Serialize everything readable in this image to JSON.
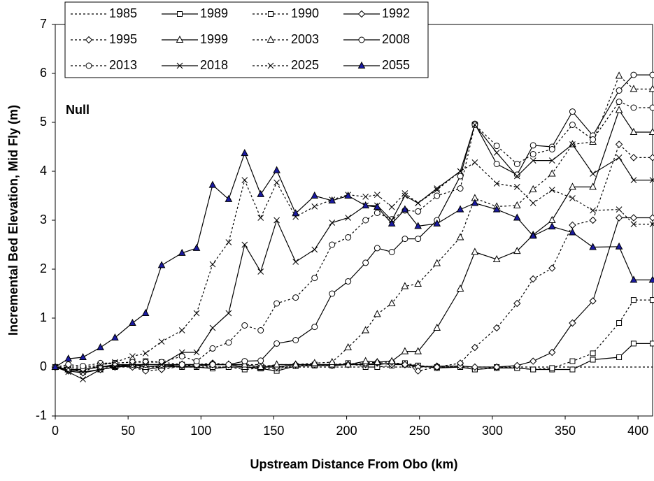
{
  "chart_data": {
    "type": "line",
    "x_label": "Upstream Distance From Obo (km)",
    "y_label": "Incremental Bed Elevation, Mid Fly (m)",
    "annotation": "Null",
    "x": [
      0,
      9,
      19,
      31,
      41,
      53,
      62,
      73,
      87,
      97,
      108,
      119,
      130,
      141,
      152,
      165,
      178,
      190,
      201,
      213,
      221,
      231,
      240,
      249,
      262,
      278,
      288,
      303,
      317,
      328,
      341,
      355,
      369,
      387,
      397,
      410
    ],
    "xlim": [
      0,
      410
    ],
    "xticks": [
      0,
      50,
      100,
      150,
      200,
      250,
      300,
      350,
      400
    ],
    "ylim": [
      -1,
      7
    ],
    "yticks": [
      -1,
      0,
      1,
      2,
      3,
      4,
      5,
      6,
      7
    ],
    "grid": false,
    "legend_position": "top-left",
    "series": [
      {
        "name": "1985",
        "color": "#000000",
        "dash": true,
        "marker": "none",
        "values": [
          0,
          0,
          0,
          0,
          0,
          0,
          0,
          0,
          0,
          0,
          0,
          0,
          0,
          0,
          0,
          0,
          0,
          0,
          0,
          0,
          0,
          0,
          0,
          0,
          0,
          0,
          0,
          0,
          0,
          0,
          0,
          0,
          0,
          0,
          0,
          0
        ]
      },
      {
        "name": "1989",
        "color": "#000000",
        "dash": false,
        "marker": "square",
        "values": [
          0,
          -0.05,
          -0.1,
          -0.05,
          0,
          0.02,
          0.05,
          0.05,
          0,
          0,
          -0.03,
          0,
          0,
          -0.03,
          -0.08,
          0.02,
          0.03,
          0.03,
          0.05,
          0.05,
          0.05,
          0.08,
          0.05,
          0.03,
          -0.02,
          0,
          -0.05,
          -0.02,
          -0.02,
          -0.05,
          -0.05,
          -0.05,
          0.15,
          0.2,
          0.48,
          0.48
        ]
      },
      {
        "name": "1990",
        "color": "#000000",
        "dash": true,
        "marker": "square",
        "values": [
          0,
          -0.05,
          -0.02,
          0.05,
          0.08,
          0.1,
          0.12,
          0.1,
          0.05,
          0.05,
          0,
          0,
          -0.05,
          -0.02,
          -0.03,
          0.02,
          0.05,
          0.05,
          0.08,
          0,
          0,
          0.03,
          0.08,
          0.03,
          0,
          0,
          -0.05,
          0,
          -0.02,
          -0.05,
          -0.02,
          0.12,
          0.28,
          0.9,
          1.37,
          1.37
        ]
      },
      {
        "name": "1992",
        "color": "#000000",
        "dash": false,
        "marker": "diamond",
        "values": [
          0,
          -0.08,
          -0.12,
          -0.05,
          0,
          0.02,
          -0.05,
          0,
          0.02,
          0.02,
          0.05,
          0.05,
          0.05,
          0,
          0,
          0.05,
          0.05,
          0.05,
          0.05,
          0.05,
          0.08,
          0.05,
          0.05,
          0,
          0.02,
          0.02,
          0,
          0,
          0.03,
          0.12,
          0.3,
          0.9,
          1.35,
          3.05,
          3.05,
          3.05
        ]
      },
      {
        "name": "1995",
        "color": "#000000",
        "dash": true,
        "marker": "diamond",
        "values": [
          0,
          -0.05,
          -0.05,
          0,
          0.02,
          0,
          -0.08,
          -0.05,
          0.02,
          0.05,
          0.08,
          0.05,
          0.05,
          0.05,
          0,
          0.05,
          0.05,
          0.03,
          0.05,
          0.08,
          0.1,
          0.1,
          0.05,
          -0.08,
          0,
          0.08,
          0.4,
          0.8,
          1.3,
          1.8,
          2.02,
          2.9,
          3.0,
          4.55,
          4.28,
          4.28
        ]
      },
      {
        "name": "1999",
        "color": "#000000",
        "dash": false,
        "marker": "triangle",
        "values": [
          0,
          -0.05,
          -0.05,
          0,
          0.02,
          0.05,
          0,
          0.03,
          0.05,
          0.05,
          0.05,
          0.05,
          0,
          -0.02,
          0.05,
          0.05,
          0.05,
          0.05,
          0.05,
          0.12,
          0.1,
          0.12,
          0.32,
          0.32,
          0.8,
          1.6,
          2.35,
          2.2,
          2.37,
          2.7,
          3.0,
          3.68,
          3.68,
          5.25,
          4.8,
          4.8
        ]
      },
      {
        "name": "2003",
        "color": "#000000",
        "dash": true,
        "marker": "triangle",
        "values": [
          0,
          -0.05,
          -0.05,
          0,
          0.03,
          0.05,
          0,
          0.02,
          0.05,
          0.05,
          0.05,
          0.05,
          0.05,
          0,
          0.05,
          0.05,
          0.08,
          0.1,
          0.4,
          0.75,
          1.08,
          1.3,
          1.65,
          1.7,
          2.12,
          2.65,
          3.45,
          3.28,
          3.3,
          3.63,
          3.95,
          4.55,
          4.6,
          5.95,
          5.68,
          5.68
        ]
      },
      {
        "name": "2008",
        "color": "#000000",
        "dash": false,
        "marker": "circle",
        "values": [
          0,
          -0.05,
          -0.05,
          0,
          0.05,
          0.05,
          0.05,
          0.05,
          0.05,
          0.05,
          0.05,
          0.05,
          0.12,
          0.13,
          0.48,
          0.55,
          0.82,
          1.5,
          1.75,
          2.13,
          2.43,
          2.35,
          2.62,
          2.62,
          3.0,
          3.9,
          4.97,
          4.15,
          3.93,
          4.53,
          4.5,
          5.22,
          4.73,
          5.65,
          5.97,
          5.97
        ]
      },
      {
        "name": "2013",
        "color": "#000000",
        "dash": true,
        "marker": "circle",
        "values": [
          0,
          0.05,
          0.02,
          0.08,
          0.08,
          0.1,
          0.1,
          0.1,
          0.22,
          0.12,
          0.38,
          0.5,
          0.85,
          0.75,
          1.3,
          1.42,
          1.82,
          2.5,
          2.65,
          3.0,
          3.15,
          3.02,
          3.2,
          3.18,
          3.5,
          3.65,
          4.95,
          4.52,
          4.15,
          4.35,
          4.45,
          4.95,
          4.65,
          5.42,
          5.3,
          5.3
        ]
      },
      {
        "name": "2018",
        "color": "#000000",
        "dash": false,
        "marker": "x",
        "values": [
          0,
          -0.1,
          -0.25,
          -0.05,
          0,
          0.05,
          0.05,
          0.05,
          0.3,
          0.3,
          0.8,
          1.1,
          2.5,
          1.95,
          3.0,
          2.15,
          2.4,
          2.95,
          3.05,
          3.3,
          3.3,
          3.0,
          3.5,
          3.35,
          3.65,
          4.0,
          4.95,
          4.38,
          3.9,
          4.22,
          4.22,
          4.55,
          3.95,
          4.28,
          3.82,
          3.82
        ]
      },
      {
        "name": "2025",
        "color": "#000000",
        "dash": true,
        "marker": "x",
        "values": [
          0,
          -0.02,
          -0.1,
          0.05,
          0.1,
          0.22,
          0.28,
          0.52,
          0.75,
          1.1,
          2.1,
          2.55,
          3.82,
          3.05,
          3.77,
          3.07,
          3.28,
          3.42,
          3.52,
          3.48,
          3.52,
          3.27,
          3.55,
          3.35,
          3.62,
          4.0,
          4.18,
          3.75,
          3.68,
          3.35,
          3.62,
          3.45,
          3.2,
          3.22,
          2.92,
          2.92
        ]
      },
      {
        "name": "2055",
        "color": "#000000",
        "dash": false,
        "marker": "filled-triangle",
        "marker_fill": "#1a1aa0",
        "values": [
          0,
          0.17,
          0.2,
          0.4,
          0.6,
          0.9,
          1.1,
          2.08,
          2.33,
          2.43,
          3.72,
          3.43,
          4.37,
          3.53,
          4.02,
          3.14,
          3.5,
          3.4,
          3.5,
          3.3,
          3.27,
          2.93,
          3.22,
          2.88,
          2.93,
          3.22,
          3.35,
          3.22,
          3.05,
          2.68,
          2.87,
          2.75,
          2.45,
          2.46,
          1.78,
          1.78
        ]
      }
    ]
  }
}
